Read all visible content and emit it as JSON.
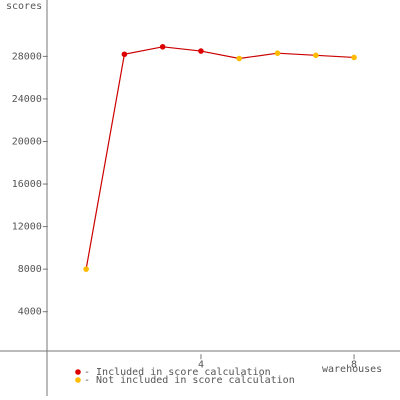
{
  "chart_data": {
    "type": "line",
    "y_label": "scores",
    "x_label": "warehouses",
    "x": [
      1,
      2,
      3,
      4,
      5,
      6,
      7,
      8
    ],
    "line_color": "#cc0000",
    "series": [
      {
        "name": "- Included in score calculation",
        "color": "#dd0000",
        "values": [
          null,
          28200,
          28900,
          28500,
          null,
          null,
          null,
          null
        ]
      },
      {
        "name": "- Not included in score calculation",
        "color": "#ffbb00",
        "values": [
          8000,
          null,
          null,
          null,
          27800,
          28300,
          28100,
          27900
        ]
      }
    ],
    "xlim": [
      -1.25,
      9.2
    ],
    "xticks": [
      4,
      8
    ],
    "ylim": [
      -4300,
      33300
    ],
    "yticks": [
      4000,
      8000,
      12000,
      16000,
      20000,
      24000,
      28000
    ],
    "grid": false
  }
}
